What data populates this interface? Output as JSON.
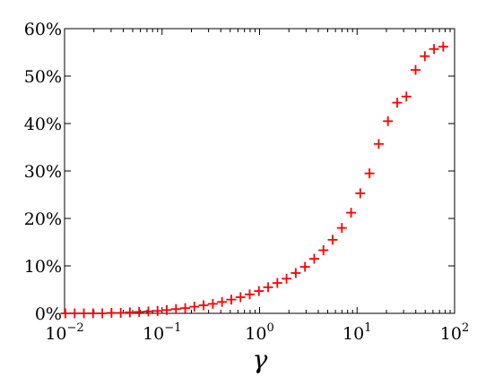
{
  "chart_data": {
    "type": "scatter",
    "title": "",
    "xlabel": "γ",
    "ylabel": "",
    "x_scale": "log",
    "xlim": [
      0.01,
      100
    ],
    "ylim": [
      0,
      60
    ],
    "grid": false,
    "marker": "plus",
    "marker_color": "#ff0000",
    "y_ticks": [
      {
        "value": 0,
        "label": "0%"
      },
      {
        "value": 10,
        "label": "10%"
      },
      {
        "value": 20,
        "label": "20%"
      },
      {
        "value": 30,
        "label": "30%"
      },
      {
        "value": 40,
        "label": "40%"
      },
      {
        "value": 50,
        "label": "50%"
      },
      {
        "value": 60,
        "label": "60%"
      }
    ],
    "x_ticks": [
      {
        "value": 0.01,
        "base": "10",
        "exp": "−2"
      },
      {
        "value": 0.1,
        "base": "10",
        "exp": "−1"
      },
      {
        "value": 1,
        "base": "10",
        "exp": "0"
      },
      {
        "value": 10,
        "base": "10",
        "exp": "1"
      },
      {
        "value": 100,
        "base": "10",
        "exp": "2"
      }
    ],
    "series": [
      {
        "x": [
          0.0102,
          0.0127,
          0.0158,
          0.0196,
          0.0244,
          0.0303,
          0.0377,
          0.0468,
          0.0582,
          0.0724,
          0.0899,
          0.1118,
          0.139,
          0.1727,
          0.2147,
          0.2669,
          0.3318,
          0.4125,
          0.5128,
          0.6375,
          0.7925,
          0.985,
          1.2247,
          1.522,
          1.892,
          2.353,
          2.924,
          3.636,
          4.518,
          5.62,
          6.985,
          8.683,
          10.79,
          13.42,
          16.68,
          20.74,
          25.78,
          32.05,
          39.84,
          49.53,
          61.57,
          76.5
        ],
        "y": [
          0.0,
          0.0,
          0.0,
          0.0,
          0.0,
          0.1,
          0.1,
          0.2,
          0.3,
          0.4,
          0.5,
          0.7,
          0.9,
          1.1,
          1.4,
          1.7,
          2.0,
          2.4,
          2.9,
          3.4,
          4.0,
          4.7,
          5.5,
          6.4,
          7.3,
          8.5,
          9.8,
          11.5,
          13.3,
          15.5,
          18.0,
          21.2,
          25.3,
          29.5,
          35.7,
          40.5,
          44.4,
          45.7,
          51.3,
          54.2,
          55.7,
          56.2
        ]
      }
    ]
  }
}
